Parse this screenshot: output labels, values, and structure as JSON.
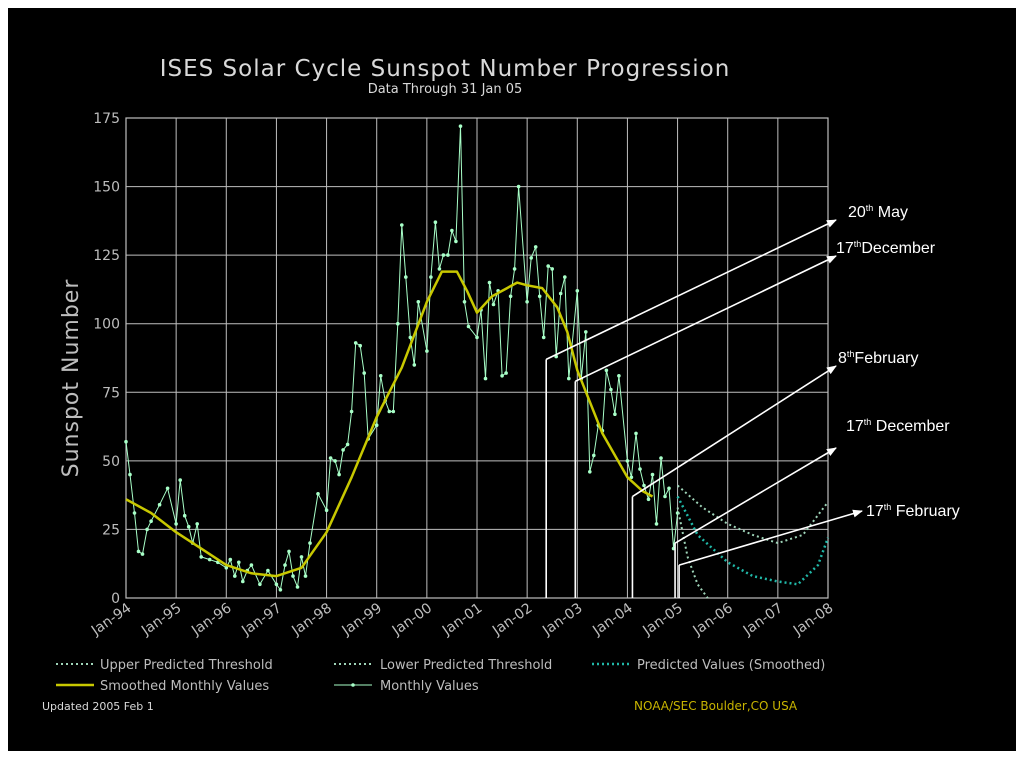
{
  "chart_data": {
    "type": "line",
    "title": "ISES Solar Cycle Sunspot Number Progression",
    "subtitle": "Data Through 31 Jan 05",
    "ylabel": "Sunspot Number",
    "xlabel": "",
    "ylim": [
      0,
      175
    ],
    "yticks": [
      0,
      25,
      50,
      75,
      100,
      125,
      150,
      175
    ],
    "xlim": [
      1994.0,
      2008.0
    ],
    "xticks": [
      {
        "label": "Jan-94",
        "value": 1994
      },
      {
        "label": "Jan-95",
        "value": 1995
      },
      {
        "label": "Jan-96",
        "value": 1996
      },
      {
        "label": "Jan-97",
        "value": 1997
      },
      {
        "label": "Jan-98",
        "value": 1998
      },
      {
        "label": "Jan-99",
        "value": 1999
      },
      {
        "label": "Jan-00",
        "value": 2000
      },
      {
        "label": "Jan-01",
        "value": 2001
      },
      {
        "label": "Jan-02",
        "value": 2002
      },
      {
        "label": "Jan-03",
        "value": 2003
      },
      {
        "label": "Jan-04",
        "value": 2004
      },
      {
        "label": "Jan-05",
        "value": 2005
      },
      {
        "label": "Jan-06",
        "value": 2006
      },
      {
        "label": "Jan-07",
        "value": 2007
      },
      {
        "label": "Jan-08",
        "value": 2008
      }
    ],
    "grid": true,
    "series": [
      {
        "name": "Monthly Values",
        "color": "#a8ffc8",
        "x": [
          1994.0,
          1994.17,
          1994.33,
          1994.5,
          1994.67,
          1994.83,
          1995.0,
          1995.17,
          1995.33,
          1995.5,
          1995.67,
          1995.83,
          1996.0,
          1996.17,
          1996.33,
          1996.5,
          1996.67,
          1996.83,
          1997.0,
          1997.17,
          1997.33,
          1997.5,
          1997.67,
          1997.83,
          1998.0,
          1998.17,
          1998.33,
          1998.5,
          1998.67,
          1998.83,
          1999.0,
          1999.17,
          1999.33,
          1999.5,
          1999.67,
          1999.83,
          2000.0,
          2000.17,
          2000.33,
          2000.5,
          2000.67,
          2000.83,
          2001.0,
          2001.17,
          2001.33,
          2001.5,
          2001.67,
          2001.83,
          2002.0,
          2002.17,
          2002.33,
          2002.5,
          2002.67,
          2002.83,
          2003.0,
          2003.17,
          2003.33,
          2003.5,
          2003.67,
          2003.83,
          2004.0,
          2004.17,
          2004.33,
          2004.5,
          2004.67,
          2004.83,
          2005.0
        ],
        "y": [
          57,
          31,
          16,
          28,
          34,
          40,
          27,
          30,
          20,
          15,
          14,
          13,
          11,
          8,
          6,
          12,
          5,
          10,
          5,
          12,
          8,
          15,
          20,
          38,
          32,
          50,
          54,
          68,
          92,
          58,
          63,
          72,
          68,
          136,
          95,
          108,
          90,
          137,
          125,
          134,
          172,
          99,
          95,
          80,
          107,
          81,
          110,
          150,
          108,
          128,
          95,
          120,
          111,
          80,
          112,
          97,
          52,
          61,
          76,
          81,
          50,
          60,
          41,
          45,
          51,
          40,
          31
        ],
        "extra_points": [
          [
            1994.08,
            45
          ],
          [
            1994.25,
            17
          ],
          [
            1994.42,
            25
          ],
          [
            1995.08,
            43
          ],
          [
            1995.25,
            26
          ],
          [
            1995.42,
            27
          ],
          [
            1996.08,
            14
          ],
          [
            1996.25,
            13
          ],
          [
            1996.42,
            10
          ],
          [
            1997.08,
            3
          ],
          [
            1997.25,
            17
          ],
          [
            1997.42,
            4
          ],
          [
            1997.58,
            8
          ],
          [
            1998.08,
            51
          ],
          [
            1998.25,
            45
          ],
          [
            1998.42,
            56
          ],
          [
            1998.58,
            93
          ],
          [
            1998.75,
            82
          ],
          [
            1999.08,
            81
          ],
          [
            1999.25,
            68
          ],
          [
            1999.42,
            100
          ],
          [
            1999.58,
            117
          ],
          [
            1999.75,
            85
          ],
          [
            2000.08,
            117
          ],
          [
            2000.25,
            120
          ],
          [
            2000.42,
            125
          ],
          [
            2000.58,
            130
          ],
          [
            2000.75,
            108
          ],
          [
            2001.08,
            105
          ],
          [
            2001.25,
            115
          ],
          [
            2001.42,
            112
          ],
          [
            2001.58,
            82
          ],
          [
            2001.75,
            120
          ],
          [
            2002.08,
            124
          ],
          [
            2002.25,
            110
          ],
          [
            2002.42,
            121
          ],
          [
            2002.58,
            88
          ],
          [
            2002.75,
            117
          ],
          [
            2003.08,
            80
          ],
          [
            2003.25,
            46
          ],
          [
            2003.42,
            63
          ],
          [
            2003.58,
            83
          ],
          [
            2003.75,
            67
          ],
          [
            2004.08,
            44
          ],
          [
            2004.25,
            47
          ],
          [
            2004.42,
            36
          ],
          [
            2004.58,
            27
          ],
          [
            2004.75,
            37
          ],
          [
            2004.92,
            18
          ]
        ]
      },
      {
        "name": "Smoothed Monthly Values",
        "color": "#c8c800",
        "x": [
          1994.0,
          1994.5,
          1995.0,
          1995.5,
          1996.0,
          1996.5,
          1997.0,
          1997.5,
          1998.0,
          1998.5,
          1999.0,
          1999.5,
          2000.0,
          2000.3,
          2000.6,
          2000.8,
          2001.0,
          2001.3,
          2001.6,
          2001.8,
          2002.0,
          2002.3,
          2002.6,
          2002.8,
          2003.0,
          2003.5,
          2004.0,
          2004.3,
          2004.5
        ],
        "y": [
          36,
          31,
          24,
          18,
          12,
          9,
          8,
          11,
          24,
          44,
          66,
          84,
          108,
          119,
          119,
          112,
          104,
          110,
          113,
          115,
          114,
          113,
          106,
          97,
          83,
          60,
          44,
          39,
          37
        ]
      },
      {
        "name": "Upper Predicted Threshold",
        "color": "#9ed4b8",
        "x": [
          2005.0,
          2005.5,
          2006.0,
          2006.5,
          2007.0,
          2007.5,
          2008.0
        ],
        "y": [
          41,
          33,
          27,
          23,
          20,
          23,
          35
        ]
      },
      {
        "name": "Lower Predicted Threshold",
        "color": "#9ed4b8",
        "x": [
          2005.0,
          2005.2,
          2005.4,
          2005.6
        ],
        "y": [
          33,
          15,
          5,
          0
        ]
      },
      {
        "name": "Predicted Values (Smoothed)",
        "color": "#20b8a8",
        "x": [
          2005.0,
          2005.4,
          2006.0,
          2006.5,
          2007.0,
          2007.4,
          2007.8,
          2008.0
        ],
        "y": [
          37,
          23,
          13,
          8,
          6,
          5,
          12,
          22
        ]
      }
    ],
    "annotations": [
      {
        "label_num": "20",
        "label_sup": "th",
        "label_text": " May",
        "point": [
          2002.38,
          87
        ]
      },
      {
        "label_num": "17",
        "label_sup": "th",
        "label_text": "December",
        "point": [
          2002.96,
          79
        ]
      },
      {
        "label_num": "8",
        "label_sup": "th",
        "label_text": "February",
        "point": [
          2004.1,
          37
        ]
      },
      {
        "label_num": "17",
        "label_sup": "th",
        "label_text": " December",
        "point": [
          2004.95,
          20
        ]
      },
      {
        "label_num": "17",
        "label_sup": "th",
        "label_text": " February",
        "point": [
          2005.03,
          12
        ]
      }
    ]
  },
  "legend": {
    "upper": "Upper Predicted Threshold",
    "lower": "Lower Predicted Threshold",
    "predicted": "Predicted Values (Smoothed)",
    "smoothed": "Smoothed Monthly Values",
    "monthly": "Monthly Values"
  },
  "footer": {
    "updated": "Updated 2005 Feb  1",
    "credit": "NOAA/SEC Boulder,CO USA"
  },
  "colors": {
    "background": "#000000",
    "grid": "#bfbfbf",
    "smoothed": "#c8c800",
    "monthly": "#a8ffc8",
    "predicted": "#20b8a8",
    "threshold": "#9ed4b8",
    "credit": "#c8b400"
  }
}
